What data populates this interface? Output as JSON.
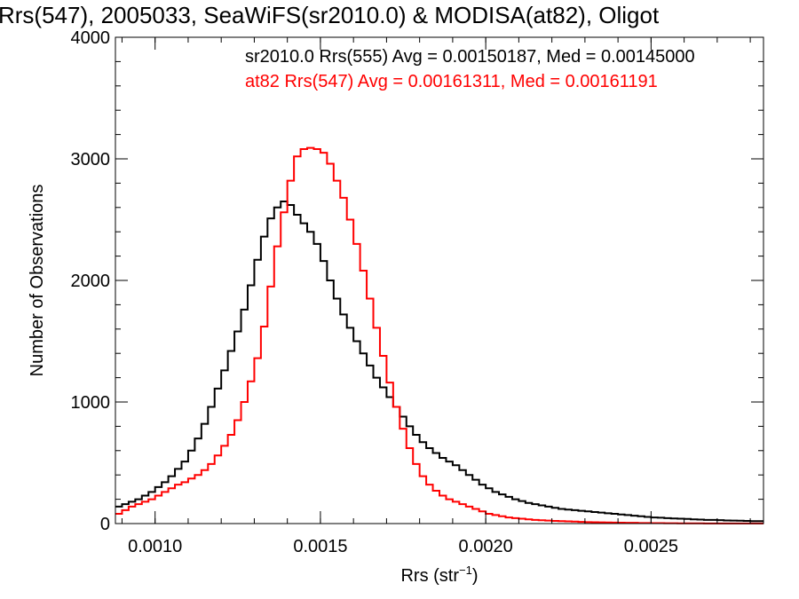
{
  "chart_data": {
    "type": "line",
    "title": "Rrs(547), 2005033, SeaWiFS(sr2010.0) & MODISA(at82), Oligot",
    "xlabel_main": "Rrs (str",
    "xlabel_sup": "−1",
    "xlabel_close": ")",
    "ylabel": "Number of Observations",
    "xlim": [
      0.00088,
      0.00284
    ],
    "ylim": [
      0,
      4000
    ],
    "x_ticks": [
      0.001,
      0.0015,
      0.002,
      0.0025
    ],
    "x_tick_labels": [
      "0.0010",
      "0.0015",
      "0.0020",
      "0.0025"
    ],
    "y_ticks": [
      0,
      1000,
      2000,
      3000,
      4000
    ],
    "y_tick_labels": [
      "0",
      "1000",
      "2000",
      "3000",
      "4000"
    ],
    "legend_placement": "top-right",
    "series": [
      {
        "name": "sr2010.0 Rrs(555) Avg = 0.00150187, Med = 0.00145000",
        "color": "#000000",
        "x": [
          0.00088,
          0.0009,
          0.00092,
          0.00094,
          0.00096,
          0.00098,
          0.001,
          0.00102,
          0.00104,
          0.00106,
          0.00108,
          0.0011,
          0.00112,
          0.00114,
          0.00116,
          0.00118,
          0.0012,
          0.00122,
          0.00124,
          0.00126,
          0.00128,
          0.0013,
          0.00132,
          0.00134,
          0.00136,
          0.00138,
          0.0014,
          0.00142,
          0.00144,
          0.00146,
          0.00148,
          0.0015,
          0.00152,
          0.00154,
          0.00156,
          0.00158,
          0.0016,
          0.00162,
          0.00164,
          0.00166,
          0.00168,
          0.0017,
          0.00172,
          0.00174,
          0.00176,
          0.00178,
          0.0018,
          0.00182,
          0.00184,
          0.00186,
          0.00188,
          0.0019,
          0.00192,
          0.00194,
          0.00196,
          0.00198,
          0.002,
          0.00202,
          0.00204,
          0.00206,
          0.00208,
          0.0021,
          0.00212,
          0.00214,
          0.00216,
          0.00218,
          0.0022,
          0.00222,
          0.00224,
          0.00226,
          0.00228,
          0.0023,
          0.00232,
          0.00234,
          0.00236,
          0.00238,
          0.0024,
          0.00242,
          0.00244,
          0.00246,
          0.00248,
          0.0025,
          0.00252,
          0.00254,
          0.00256,
          0.00258,
          0.0026,
          0.00262,
          0.00264,
          0.00266,
          0.00268,
          0.0027,
          0.00272,
          0.00274,
          0.00276,
          0.00278,
          0.0028,
          0.00282
        ],
        "y": [
          140,
          160,
          180,
          200,
          230,
          260,
          300,
          340,
          390,
          450,
          510,
          600,
          700,
          820,
          960,
          1110,
          1260,
          1420,
          1580,
          1760,
          1960,
          2170,
          2360,
          2510,
          2600,
          2650,
          2620,
          2540,
          2470,
          2400,
          2300,
          2160,
          2000,
          1850,
          1720,
          1610,
          1500,
          1400,
          1300,
          1200,
          1120,
          1040,
          960,
          880,
          800,
          730,
          670,
          620,
          580,
          540,
          510,
          480,
          440,
          400,
          360,
          320,
          290,
          260,
          240,
          220,
          200,
          185,
          170,
          160,
          150,
          140,
          130,
          120,
          115,
          110,
          105,
          100,
          95,
          90,
          85,
          80,
          75,
          70,
          65,
          60,
          55,
          50,
          48,
          45,
          42,
          40,
          38,
          35,
          33,
          30,
          30,
          28,
          26,
          25,
          24,
          22,
          20,
          20
        ]
      },
      {
        "name": "at82 Rrs(547) Avg = 0.00161311, Med = 0.00161191",
        "color": "#ff0000",
        "x": [
          0.00088,
          0.0009,
          0.00092,
          0.00094,
          0.00096,
          0.00098,
          0.001,
          0.00102,
          0.00104,
          0.00106,
          0.00108,
          0.0011,
          0.00112,
          0.00114,
          0.00116,
          0.00118,
          0.0012,
          0.00122,
          0.00124,
          0.00126,
          0.00128,
          0.0013,
          0.00132,
          0.00134,
          0.00136,
          0.00138,
          0.0014,
          0.00142,
          0.00144,
          0.00146,
          0.00148,
          0.0015,
          0.00152,
          0.00154,
          0.00156,
          0.00158,
          0.0016,
          0.00162,
          0.00164,
          0.00166,
          0.00168,
          0.0017,
          0.00172,
          0.00174,
          0.00176,
          0.00178,
          0.0018,
          0.00182,
          0.00184,
          0.00186,
          0.00188,
          0.0019,
          0.00192,
          0.00194,
          0.00196,
          0.00198,
          0.002,
          0.00202,
          0.00204,
          0.00206,
          0.00208,
          0.0021,
          0.00212,
          0.00214,
          0.00216,
          0.00218,
          0.0022,
          0.00222,
          0.00224,
          0.00226,
          0.00228,
          0.0023,
          0.00232,
          0.00234,
          0.00236,
          0.00238,
          0.0024,
          0.00242,
          0.00244,
          0.00246,
          0.00248,
          0.0025,
          0.00252,
          0.00254,
          0.00256,
          0.00258,
          0.0026,
          0.00262,
          0.00264,
          0.00266,
          0.00268,
          0.0027,
          0.00272,
          0.00274,
          0.00276,
          0.00278,
          0.0028,
          0.00282
        ],
        "y": [
          80,
          110,
          140,
          160,
          180,
          200,
          230,
          260,
          290,
          320,
          340,
          370,
          400,
          440,
          490,
          560,
          640,
          730,
          850,
          1000,
          1170,
          1360,
          1620,
          1950,
          2280,
          2560,
          2820,
          3020,
          3080,
          3090,
          3080,
          3050,
          2960,
          2820,
          2680,
          2500,
          2300,
          2080,
          1850,
          1610,
          1380,
          1160,
          960,
          780,
          620,
          490,
          390,
          320,
          270,
          230,
          200,
          180,
          160,
          140,
          120,
          100,
          80,
          70,
          60,
          50,
          45,
          40,
          35,
          30,
          27,
          25,
          22,
          20,
          18,
          16,
          14,
          12,
          11,
          10,
          9,
          8,
          7,
          6,
          6,
          5,
          5,
          4,
          4,
          3,
          3,
          2,
          2,
          2,
          2,
          1,
          1,
          1,
          1,
          1,
          1,
          1,
          1,
          1
        ]
      }
    ]
  }
}
